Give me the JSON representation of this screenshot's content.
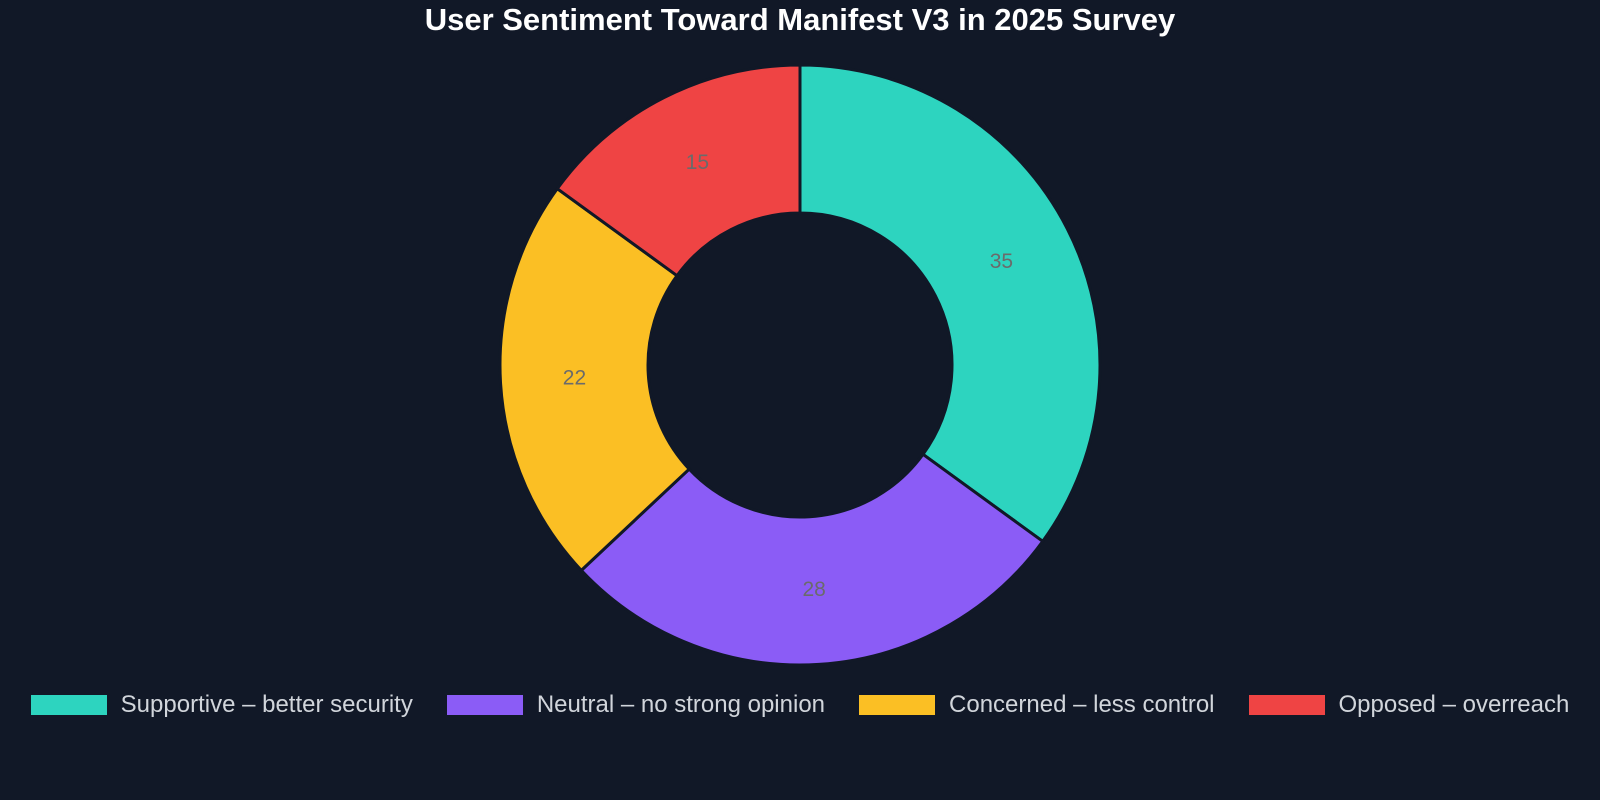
{
  "chart_data": {
    "type": "pie",
    "variant": "donut",
    "title": "User Sentiment Toward Manifest V3 in 2025 Survey",
    "categories": [
      "Supportive – better security",
      "Neutral – no strong opinion",
      "Concerned – less control",
      "Opposed – overreach"
    ],
    "values": [
      35,
      28,
      22,
      15
    ],
    "colors": [
      "#2dd4bf",
      "#8b5cf6",
      "#fbbf24",
      "#ef4444"
    ],
    "legend_position": "bottom"
  }
}
